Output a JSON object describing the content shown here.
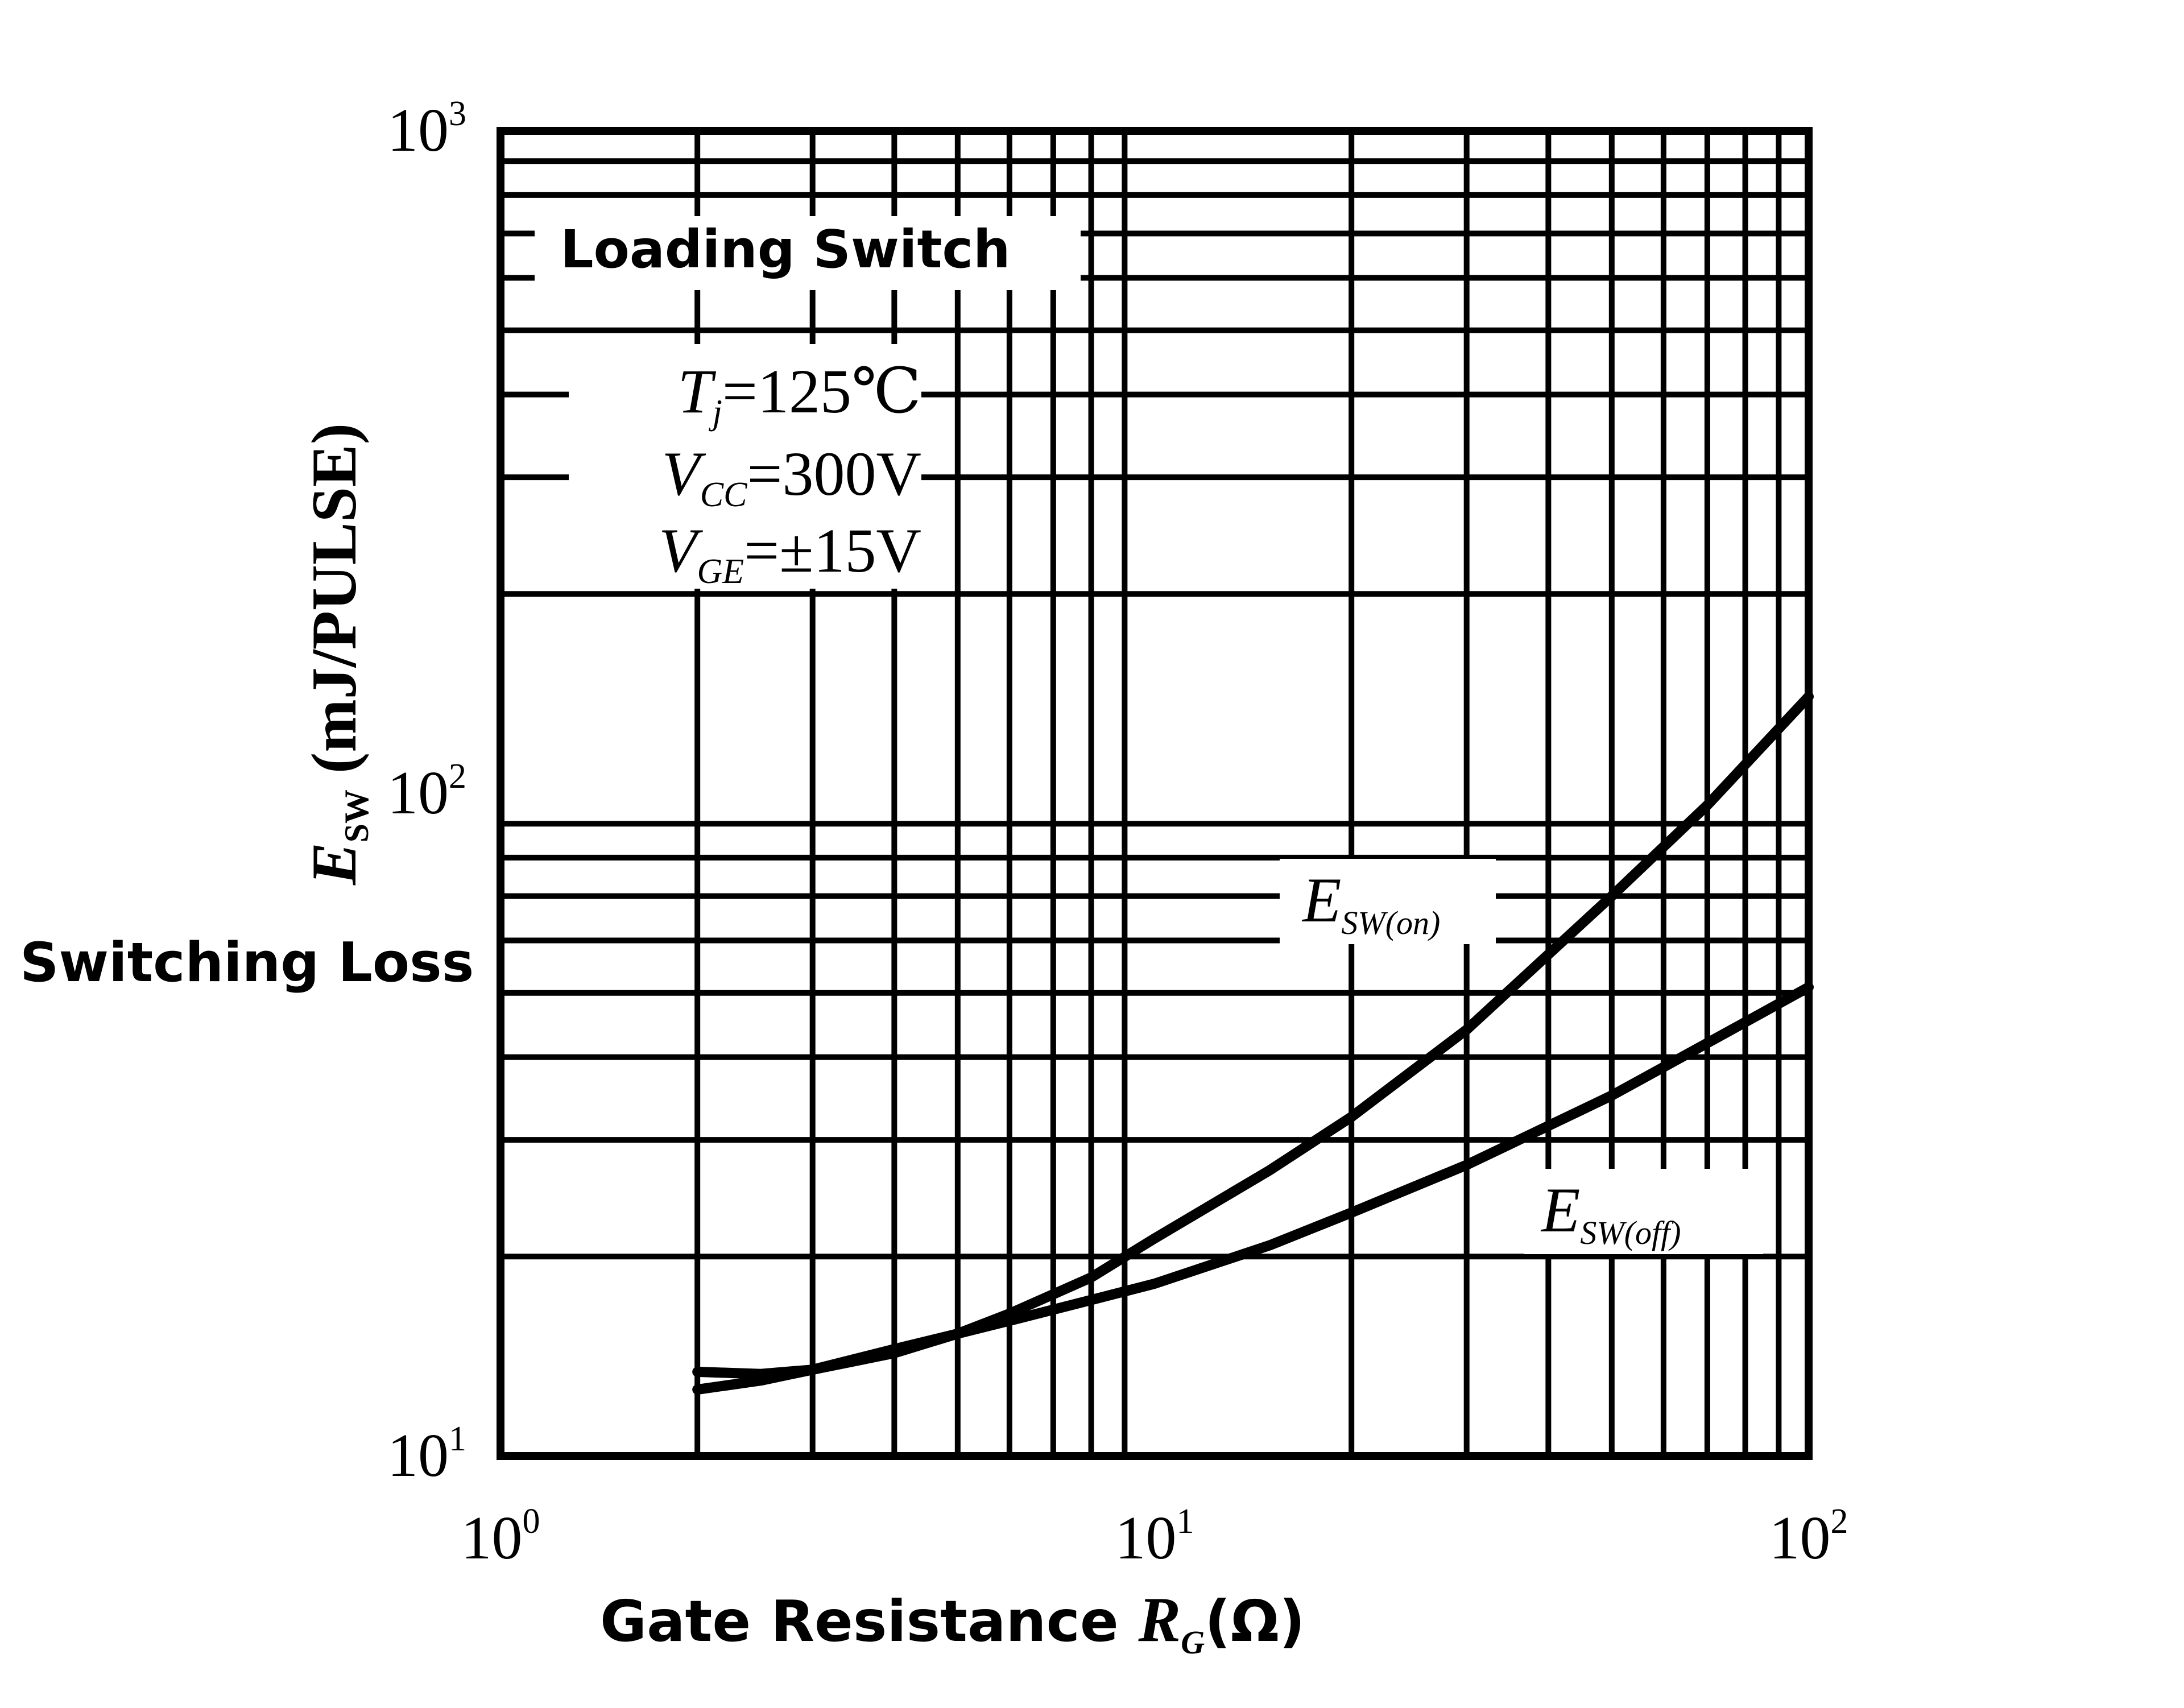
{
  "chart_data": {
    "type": "line",
    "title": "",
    "xlabel_main": "Gate Resistance ",
    "xlabel_symbol": "R",
    "xlabel_sub": "G",
    "xlabel_unit": "(Ω)",
    "ylabel_symbol": "E",
    "ylabel_sub": "SW",
    "ylabel_unit": " (mJ/PULSE)",
    "ylabel_extra": "Switching Loss",
    "x_scale": "log",
    "y_scale": "log",
    "xlim": [
      1,
      100
    ],
    "ylim": [
      10,
      1000
    ],
    "x_ticks": [
      {
        "value": 1,
        "base": "10",
        "exp": "0"
      },
      {
        "value": 10,
        "base": "10",
        "exp": "1"
      },
      {
        "value": 100,
        "base": "10",
        "exp": "2"
      }
    ],
    "y_ticks": [
      {
        "value": 10,
        "base": "10",
        "exp": "1"
      },
      {
        "value": 100,
        "base": "10",
        "exp": "2"
      },
      {
        "value": 1000,
        "base": "10",
        "exp": "3"
      }
    ],
    "grid": true,
    "annotations": {
      "condition_title": "Loading Switch",
      "conditions": [
        {
          "sym": "T",
          "sub": "j",
          "val": "=125℃"
        },
        {
          "sym": "V",
          "sub": "CC",
          "val": "=300V"
        },
        {
          "sym": "V",
          "sub": "GE",
          "val": "=±15V"
        }
      ]
    },
    "series": [
      {
        "name_sym": "E",
        "name_sub": "SW(on)",
        "x": [
          2,
          2.5,
          3,
          4,
          5,
          6,
          8,
          10,
          15,
          20,
          30,
          50,
          70,
          100
        ],
        "y": [
          13.4,
          13.3,
          13.5,
          14.3,
          15.3,
          16.4,
          18.6,
          21.3,
          27,
          32.5,
          44,
          70,
          96,
          140
        ]
      },
      {
        "name_sym": "E",
        "name_sub": "SW(off)",
        "x": [
          2,
          2.5,
          3,
          4,
          5,
          6,
          8,
          10,
          15,
          20,
          30,
          50,
          70,
          100
        ],
        "y": [
          12.6,
          13,
          13.5,
          14.5,
          15.3,
          16,
          17.2,
          18.2,
          20.8,
          23.3,
          27.5,
          35,
          42,
          51
        ]
      }
    ],
    "colors": {
      "background": "#ffffff",
      "ink": "#000000"
    }
  }
}
